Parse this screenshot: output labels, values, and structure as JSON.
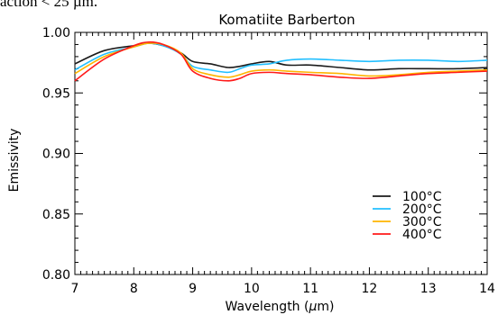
{
  "header_fragment": "action < 25 µm.",
  "colors": {
    "100°C": "#1a1a1a",
    "200°C": "#22bfff",
    "300°C": "#ffb400",
    "400°C": "#ff1a1a"
  },
  "chart_data": {
    "type": "line",
    "title": "Komatiite Barberton",
    "xlabel": "Wavelength (μm)",
    "ylabel": "Emissivity",
    "xlim": [
      7,
      14
    ],
    "ylim": [
      0.8,
      1.0
    ],
    "xticks": [
      "7",
      "8",
      "9",
      "10",
      "11",
      "12",
      "13",
      "14"
    ],
    "yticks": [
      "0.80",
      "0.85",
      "0.90",
      "0.95",
      "1.00"
    ],
    "grid": false,
    "legend_position": "bottom-right",
    "x": [
      7.0,
      7.5,
      8.0,
      8.25,
      8.5,
      8.8,
      9.0,
      9.3,
      9.6,
      9.8,
      10.0,
      10.3,
      10.6,
      11.0,
      11.5,
      12.0,
      12.5,
      13.0,
      13.5,
      14.0
    ],
    "series": [
      {
        "name": "100°C",
        "color": "#1a1a1a",
        "values": [
          0.974,
          0.985,
          0.989,
          0.991,
          0.989,
          0.983,
          0.976,
          0.974,
          0.971,
          0.972,
          0.974,
          0.976,
          0.973,
          0.973,
          0.971,
          0.969,
          0.97,
          0.97,
          0.97,
          0.971
        ]
      },
      {
        "name": "200°C",
        "color": "#22bfff",
        "values": [
          0.969,
          0.982,
          0.988,
          0.991,
          0.989,
          0.982,
          0.972,
          0.969,
          0.967,
          0.97,
          0.973,
          0.974,
          0.977,
          0.978,
          0.977,
          0.976,
          0.977,
          0.977,
          0.976,
          0.977
        ]
      },
      {
        "name": "300°C",
        "color": "#ffb400",
        "values": [
          0.966,
          0.98,
          0.988,
          0.991,
          0.99,
          0.983,
          0.97,
          0.965,
          0.963,
          0.965,
          0.968,
          0.969,
          0.968,
          0.967,
          0.966,
          0.964,
          0.965,
          0.967,
          0.968,
          0.969
        ]
      },
      {
        "name": "400°C",
        "color": "#ff1a1a",
        "values": [
          0.96,
          0.978,
          0.989,
          0.992,
          0.99,
          0.982,
          0.968,
          0.962,
          0.96,
          0.962,
          0.966,
          0.967,
          0.966,
          0.965,
          0.963,
          0.962,
          0.964,
          0.966,
          0.967,
          0.968
        ]
      }
    ]
  }
}
